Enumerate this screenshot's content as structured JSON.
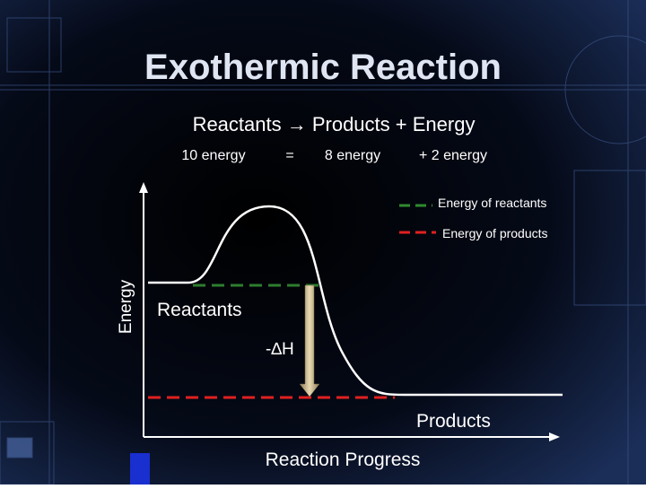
{
  "title": "Exothermic Reaction",
  "equation": {
    "line": "Reactants → Products + Energy",
    "terms": [
      "10 energy",
      "=",
      "8 energy",
      "+ 2 energy"
    ]
  },
  "legend": {
    "items": [
      "Energy of reactants",
      "Energy of products"
    ]
  },
  "axes": {
    "y_label": "Energy",
    "x_label": "Reaction Progress"
  },
  "labels": {
    "reactants": "Reactants",
    "delta_h": "-∆H",
    "products": "Products"
  }
}
